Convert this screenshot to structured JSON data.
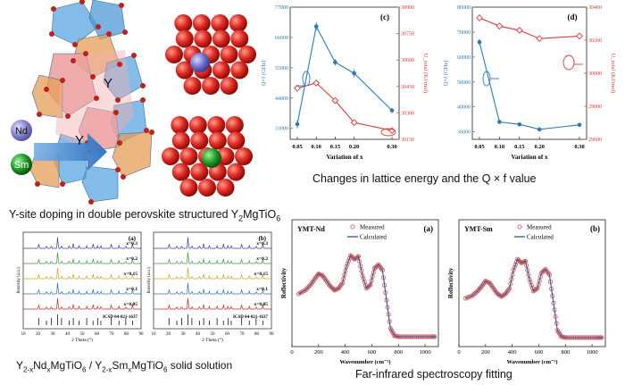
{
  "captions": {
    "yc_a": "Y",
    "yc_b": "-site doping in double perovskite structured Y",
    "yc_c": "2",
    "yc_d": "MgTiO",
    "yc_e": "6",
    "ss_a": "Y",
    "ss_b": "2-x",
    "ss_c": "Nd",
    "ss_d": "x",
    "ss_e": "MgTiO",
    "ss_f": "6",
    "ss_g": " / Y",
    "ss_h": "2-x",
    "ss_i": "Sm",
    "ss_j": "x",
    "ss_k": "MgTiO",
    "ss_l": "6",
    "ss_m": " solid solution",
    "lattice": "Changes in lattice energy and the Q × f value",
    "farir": "Far-infrared spectroscopy fitting"
  },
  "structure": {
    "label_y1": "Y",
    "label_y2": "Y",
    "label_nd": "Nd",
    "label_sm": "Sm"
  },
  "chart_data": [
    {
      "id": "c",
      "type": "line",
      "title": "(c)",
      "xlabel": "Variation of x",
      "ylabel_left": "Q×f (GHz)",
      "ylabel_right": "U_total (KJ/mol)",
      "x": [
        0.05,
        0.1,
        0.15,
        0.2,
        0.3
      ],
      "x_ticks": [
        "0.05",
        "0.10",
        "0.15",
        "0.20",
        "0.30"
      ],
      "left_ticks": [
        "33000",
        "44000",
        "55000",
        "66000",
        "77000"
      ],
      "right_ticks": [
        "30150",
        "30300",
        "30450",
        "30600",
        "30750",
        "30900"
      ],
      "ylim_left": [
        29000,
        77000
      ],
      "ylim_right": [
        30150,
        30900
      ],
      "series": [
        {
          "name": "Q×f",
          "axis": "left",
          "color": "#2b7bb9",
          "values": [
            34500,
            70000,
            57000,
            53000,
            39500
          ],
          "err": [
            1500,
            1500,
            1200,
            1500,
            900
          ]
        },
        {
          "name": "U_total",
          "axis": "right",
          "color": "#d83a3a",
          "values": [
            30440,
            30470,
            30370,
            30245,
            30200
          ]
        }
      ]
    },
    {
      "id": "d",
      "type": "line",
      "title": "(d)",
      "xlabel": "Variation of x",
      "ylabel_left": "Q×f (GHz)",
      "ylabel_right": "U_total (KJ/mol)",
      "x": [
        0.05,
        0.1,
        0.15,
        0.2,
        0.3
      ],
      "x_ticks": [
        "0.05",
        "0.10",
        "0.15",
        "0.20",
        "0.30"
      ],
      "left_ticks": [
        "30000",
        "40000",
        "50000",
        "60000",
        "70000",
        "80000"
      ],
      "right_ticks": [
        "29600",
        "29800",
        "30000",
        "30200",
        "30400"
      ],
      "ylim_left": [
        27000,
        80000
      ],
      "ylim_right": [
        29600,
        30400
      ],
      "series": [
        {
          "name": "Q×f",
          "axis": "left",
          "color": "#2b7bb9",
          "values": [
            66000,
            34000,
            33000,
            31000,
            32800
          ],
          "err": [
            1200,
            800,
            700,
            800,
            700
          ]
        },
        {
          "name": "U_total",
          "axis": "right",
          "color": "#d83a3a",
          "values": [
            30335,
            30285,
            30260,
            30210,
            30225
          ]
        }
      ]
    },
    {
      "id": "xrd_a",
      "type": "line",
      "title": "(a)",
      "xlabel": "2 Theta (°)",
      "ylabel": "Intensity (a.u.)",
      "x_ticks": [
        "10",
        "20",
        "30",
        "40",
        "50",
        "60",
        "70",
        "80",
        "90"
      ],
      "xlim": [
        10,
        90
      ],
      "icsd": "ICSD 04-021-1637",
      "series": [
        {
          "name": "x=0.3",
          "color": "#3c3c9c"
        },
        {
          "name": "x=0.2",
          "color": "#3a9a3a"
        },
        {
          "name": "x=0.15",
          "color": "#c9a72a"
        },
        {
          "name": "x=0.1",
          "color": "#2b6fb6"
        },
        {
          "name": "x=0.05",
          "color": "#c8262a"
        }
      ],
      "peak_positions": [
        20.5,
        25.8,
        29.1,
        33.4,
        36.0,
        41.2,
        44.0,
        47.9,
        53.1,
        57.4,
        60.5,
        62.7,
        69.8,
        75.0,
        79.6,
        84.2
      ]
    },
    {
      "id": "xrd_b",
      "type": "line",
      "title": "(b)",
      "xlabel": "2 Theta (°)",
      "ylabel": "Intensity (a.u.)",
      "x_ticks": [
        "10",
        "20",
        "30",
        "40",
        "50",
        "60",
        "70",
        "80",
        "90"
      ],
      "xlim": [
        10,
        90
      ],
      "icsd": "ICSD 04-021-1637",
      "series": [
        {
          "name": "x=0.3",
          "color": "#3c3c9c"
        },
        {
          "name": "x=0.2",
          "color": "#3a9a3a"
        },
        {
          "name": "x=0.15",
          "color": "#c9a72a"
        },
        {
          "name": "x=0.1",
          "color": "#2b6fb6"
        },
        {
          "name": "x=0.05",
          "color": "#c8262a"
        }
      ],
      "peak_positions": [
        20.5,
        25.8,
        29.1,
        33.4,
        36.0,
        41.2,
        44.0,
        47.9,
        53.1,
        57.4,
        60.5,
        62.7,
        69.8,
        75.0,
        79.6,
        84.2
      ]
    },
    {
      "id": "ir_a",
      "type": "line",
      "title": "(a)",
      "sample": "YMT-Nd",
      "xlabel": "Wavenumber (cm⁻¹)",
      "ylabel": "Reflectivity",
      "x_ticks": [
        "0",
        "200",
        "400",
        "600",
        "800",
        "1000"
      ],
      "xlim": [
        0,
        1100
      ],
      "ylim": [
        0,
        1
      ],
      "legend": [
        "Measured",
        "Calculated"
      ],
      "x": [
        50,
        100,
        140,
        170,
        200,
        230,
        260,
        290,
        320,
        350,
        380,
        410,
        440,
        470,
        500,
        530,
        560,
        590,
        620,
        650,
        680,
        710,
        740,
        770,
        800,
        850,
        900,
        950,
        1000,
        1050,
        1080
      ],
      "values": [
        0.52,
        0.56,
        0.62,
        0.68,
        0.74,
        0.72,
        0.66,
        0.6,
        0.56,
        0.58,
        0.64,
        0.82,
        0.94,
        0.9,
        0.93,
        0.72,
        0.58,
        0.62,
        0.8,
        0.84,
        0.78,
        0.45,
        0.14,
        0.06,
        0.05,
        0.05,
        0.05,
        0.05,
        0.05,
        0.05,
        0.05
      ]
    },
    {
      "id": "ir_b",
      "type": "line",
      "title": "(b)",
      "sample": "YMT-Sm",
      "xlabel": "Wavenumber (cm⁻¹)",
      "ylabel": "Reflectivity",
      "x_ticks": [
        "0",
        "200",
        "400",
        "600",
        "800",
        "1000"
      ],
      "xlim": [
        0,
        1100
      ],
      "ylim": [
        0,
        1
      ],
      "legend": [
        "Measured",
        "Calculated"
      ],
      "x": [
        50,
        100,
        140,
        170,
        200,
        230,
        260,
        290,
        320,
        350,
        380,
        410,
        440,
        470,
        500,
        530,
        560,
        590,
        620,
        650,
        680,
        710,
        740,
        770,
        800,
        850,
        900,
        950,
        1000,
        1050,
        1080
      ],
      "values": [
        0.47,
        0.5,
        0.55,
        0.6,
        0.66,
        0.64,
        0.58,
        0.52,
        0.49,
        0.52,
        0.58,
        0.78,
        0.9,
        0.86,
        0.88,
        0.68,
        0.55,
        0.58,
        0.75,
        0.79,
        0.73,
        0.42,
        0.12,
        0.05,
        0.04,
        0.04,
        0.04,
        0.04,
        0.04,
        0.04,
        0.04
      ]
    }
  ]
}
